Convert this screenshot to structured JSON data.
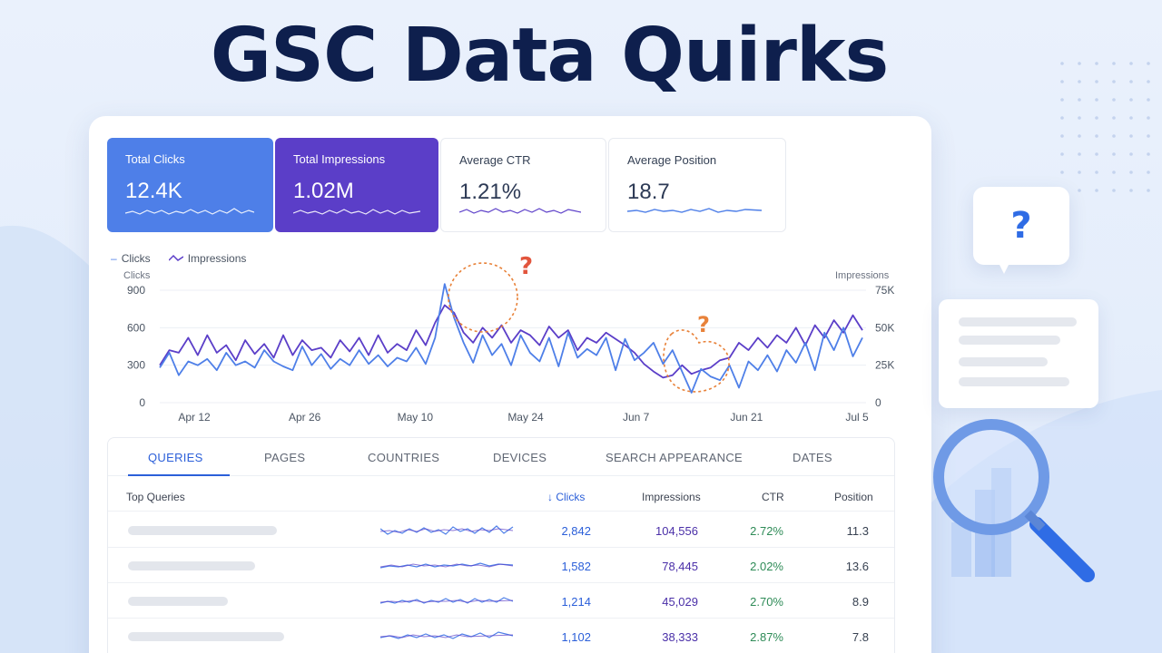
{
  "headline": "GSC Data Quirks",
  "metrics": [
    {
      "label": "Total Clicks",
      "value": "12.4K"
    },
    {
      "label": "Total Impressions",
      "value": "1.02M"
    },
    {
      "label": "Average CTR",
      "value": "1.21%"
    },
    {
      "label": "Average Position",
      "value": "18.7"
    }
  ],
  "colors": {
    "clicks": "#4e7fe8",
    "impressions": "#5b3ec8",
    "annotation": "#e8823a",
    "question_red": "#e2553d",
    "brand_blue": "#2f6ce5"
  },
  "chart_data": {
    "type": "line",
    "legend": [
      "Clicks",
      "Impressions"
    ],
    "left_axis_title": "Clicks",
    "right_axis_title": "Impressions",
    "left_ticks": [
      "900",
      "600",
      "300",
      "0"
    ],
    "right_ticks": [
      "75K",
      "50K",
      "25K",
      "0"
    ],
    "x_ticks": [
      "Apr 12",
      "Apr 26",
      "May 10",
      "May 24",
      "Jun 7",
      "Jun 21",
      "Jul 5"
    ],
    "ylim_left": [
      0,
      900
    ],
    "ylim_right": [
      0,
      75000
    ],
    "annotation_marks": [
      "?",
      "?"
    ],
    "series": [
      {
        "name": "Clicks",
        "axis": "left",
        "values": [
          280,
          400,
          220,
          330,
          300,
          350,
          260,
          400,
          300,
          330,
          280,
          420,
          330,
          290,
          260,
          450,
          300,
          390,
          270,
          350,
          300,
          420,
          310,
          380,
          290,
          360,
          330,
          440,
          310,
          520,
          950,
          680,
          480,
          320,
          540,
          380,
          470,
          300,
          540,
          400,
          330,
          520,
          290,
          560,
          360,
          430,
          380,
          520,
          260,
          510,
          340,
          400,
          480,
          310,
          420,
          250,
          80,
          270,
          210,
          180,
          300,
          120,
          330,
          260,
          380,
          250,
          420,
          320,
          480,
          260,
          560,
          420,
          600,
          370,
          520
        ]
      },
      {
        "name": "Impressions",
        "axis": "left",
        "values": [
          300,
          420,
          400,
          520,
          380,
          540,
          400,
          460,
          340,
          500,
          390,
          470,
          360,
          540,
          380,
          500,
          420,
          440,
          360,
          500,
          410,
          520,
          380,
          540,
          400,
          470,
          420,
          580,
          460,
          640,
          780,
          720,
          560,
          480,
          600,
          520,
          620,
          480,
          580,
          540,
          460,
          610,
          520,
          580,
          420,
          520,
          480,
          560,
          510,
          460,
          400,
          310,
          250,
          200,
          220,
          300,
          230,
          260,
          280,
          340,
          360,
          480,
          420,
          520,
          440,
          540,
          480,
          600,
          460,
          620,
          520,
          660,
          560,
          700,
          580
        ]
      }
    ]
  },
  "tabs": [
    "QUERIES",
    "PAGES",
    "COUNTRIES",
    "DEVICES",
    "SEARCH APPEARANCE",
    "DATES"
  ],
  "table": {
    "headers": {
      "query": "Top Queries",
      "sort_arrow": "↓",
      "clicks": "Clicks",
      "impressions": "Impressions",
      "ctr": "CTR",
      "position": "Position"
    },
    "rows": [
      {
        "clicks": "2,842",
        "impressions": "104,556",
        "ctr": "2.72%",
        "position": "11.3"
      },
      {
        "clicks": "1,582",
        "impressions": "78,445",
        "ctr": "2.02%",
        "position": "13.6"
      },
      {
        "clicks": "1,214",
        "impressions": "45,029",
        "ctr": "2.70%",
        "position": "8.9"
      },
      {
        "clicks": "1,102",
        "impressions": "38,333",
        "ctr": "2.87%",
        "position": "7.8"
      }
    ]
  },
  "decor": {
    "bubble_mark": "?"
  },
  "icons": [
    "question-mark-icon",
    "magnifier-icon",
    "bar-chart-icon",
    "document-card"
  ]
}
